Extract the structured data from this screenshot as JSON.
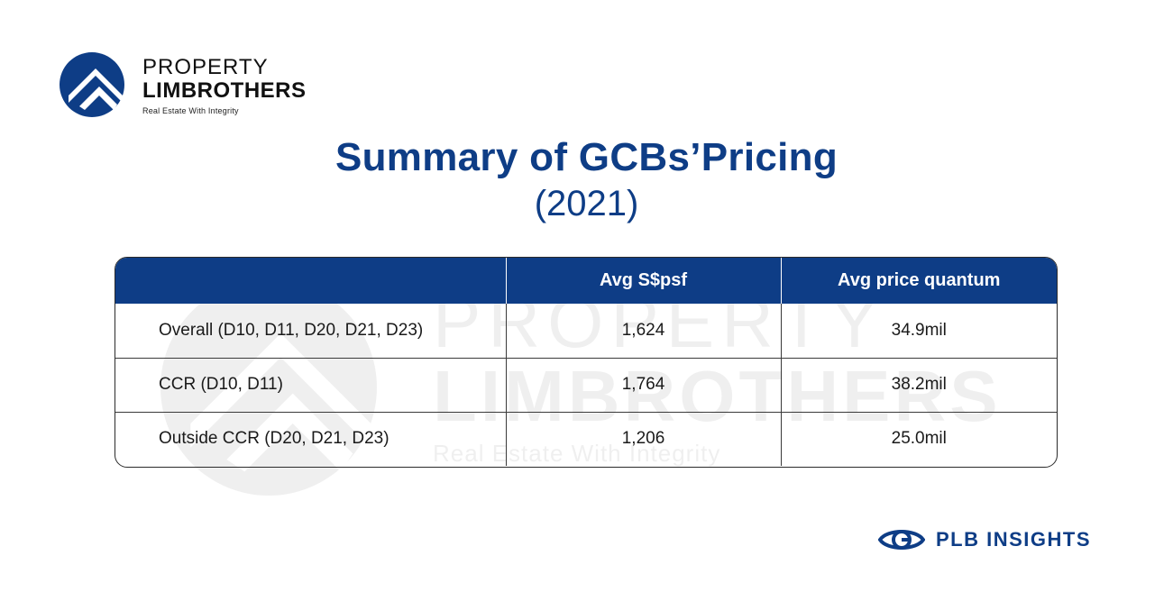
{
  "logo": {
    "line1": "PROPERTY",
    "line2": "LIMBROTHERS",
    "tagline": "Real Estate With Integrity",
    "icon": "house-roof-logo-icon",
    "color": "#0e3d86"
  },
  "watermark": {
    "line1": "PROPERTY",
    "line2": "LIMBROTHERS",
    "tagline": "Real Estate With Integrity"
  },
  "title": "Summary of GCBs’Pricing",
  "subtitle": "(2021)",
  "table": {
    "headers": [
      "",
      "Avg S$psf",
      "Avg price quantum"
    ],
    "rows": [
      [
        "Overall (D10, D11, D20, D21, D23)",
        "1,624",
        "34.9mil"
      ],
      [
        "CCR (D10, D11)",
        "1,764",
        "38.2mil"
      ],
      [
        "Outside CCR (D20, D21, D23)",
        "1,206",
        "25.0mil"
      ]
    ],
    "header_color": "#0e3d86"
  },
  "brand": {
    "label": "PLB INSIGHTS",
    "icon": "eye-icon"
  }
}
